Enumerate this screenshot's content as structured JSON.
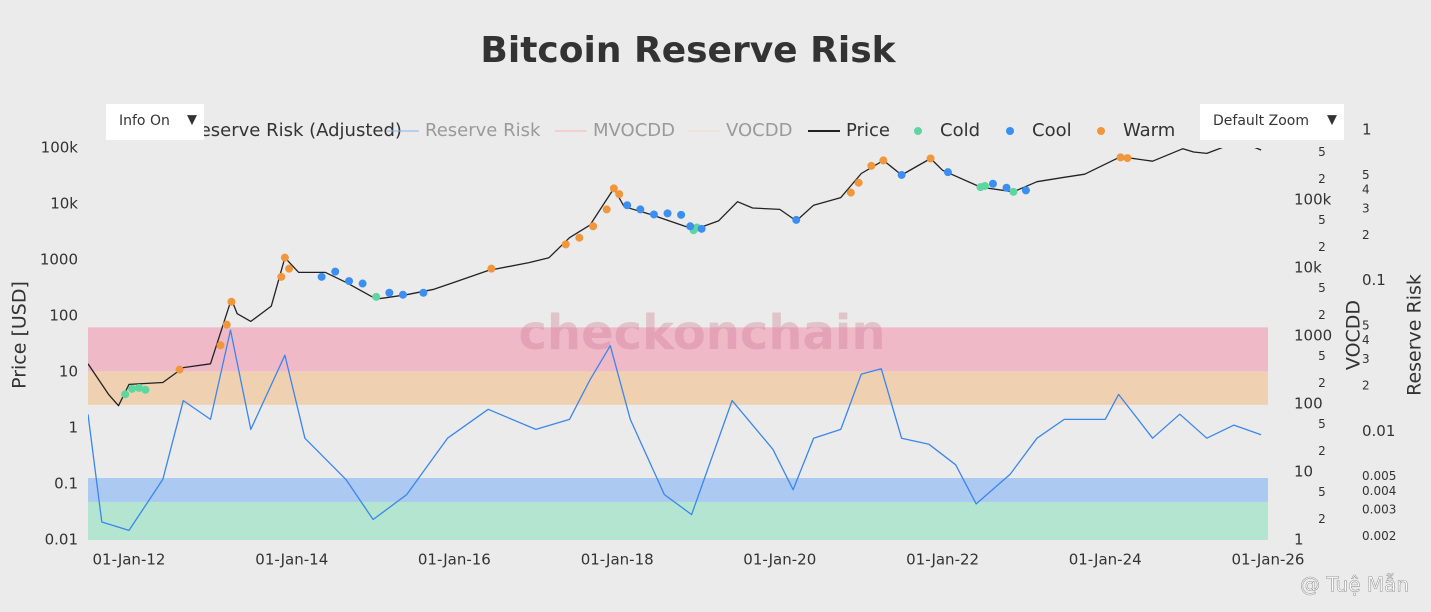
{
  "chart_data": {
    "type": "line",
    "title": "Bitcoin Reserve Risk",
    "y_label": "Price [USD]",
    "y2_label": "Reserve Risk",
    "y3_label": "VOCDD",
    "log_y": true,
    "log_y2": true,
    "log_y3": true,
    "xlim": [
      "2011-07-01",
      "2026-01-01"
    ],
    "xticks": [
      {
        "value": "2012-01-01",
        "label": "01-Jan-12"
      },
      {
        "value": "2014-01-01",
        "label": "01-Jan-14"
      },
      {
        "value": "2016-01-01",
        "label": "01-Jan-16"
      },
      {
        "value": "2018-01-01",
        "label": "01-Jan-18"
      },
      {
        "value": "2020-01-01",
        "label": "01-Jan-20"
      },
      {
        "value": "2022-01-01",
        "label": "01-Jan-22"
      },
      {
        "value": "2024-01-01",
        "label": "01-Jan-24"
      },
      {
        "value": "2026-01-01",
        "label": "01-Jan-26"
      }
    ],
    "ylim": [
      0.01,
      100000
    ],
    "yticks": [
      0.01,
      0.1,
      1,
      10,
      100,
      1000,
      {
        "value": 10000,
        "label": "10k"
      },
      {
        "value": 100000,
        "label": "100k"
      }
    ],
    "y2lim": [
      0.0019,
      0.76
    ],
    "y2ticks": [
      0.002,
      0.003,
      0.004,
      0.005,
      {
        "value": 0.01,
        "label": "0.01"
      },
      {
        "value": 0.02,
        "label": "2"
      },
      {
        "value": 0.03,
        "label": "3"
      },
      {
        "value": 0.04,
        "label": "4"
      },
      {
        "value": 0.05,
        "label": "5"
      },
      {
        "value": 0.1,
        "label": "0.1"
      },
      {
        "value": 0.2,
        "label": "2"
      },
      {
        "value": 0.3,
        "label": "3"
      },
      {
        "value": 0.4,
        "label": "4"
      },
      {
        "value": 0.5,
        "label": "5"
      },
      1
    ],
    "y3lim": [
      1,
      580000
    ],
    "y3ticks": [
      1,
      2,
      5,
      10,
      {
        "value": 20,
        "label": "2"
      },
      {
        "value": 50,
        "label": "5"
      },
      100,
      {
        "value": 200,
        "label": "2"
      },
      {
        "value": 500,
        "label": "5"
      },
      1000,
      {
        "value": 2000,
        "label": "2"
      },
      {
        "value": 5000,
        "label": "5"
      },
      {
        "value": 10000,
        "label": "10k"
      },
      {
        "value": 20000,
        "label": "2"
      },
      {
        "value": 50000,
        "label": "5"
      },
      {
        "value": 100000,
        "label": "100k"
      },
      {
        "value": 200000,
        "label": "2"
      },
      {
        "value": 500000,
        "label": "5"
      }
    ],
    "bands": [
      {
        "axis": "y2",
        "from": 0.025,
        "to": 0.049,
        "color": "#efb9c8"
      },
      {
        "axis": "y2",
        "from": 0.015,
        "to": 0.025,
        "color": "#efd1b2"
      },
      {
        "axis": "y2",
        "from": 0.0034,
        "to": 0.0049,
        "color": "#abc9f1"
      },
      {
        "axis": "y2",
        "from": 0.0019,
        "to": 0.0034,
        "color": "#b3e5d1"
      }
    ],
    "series": [
      {
        "name": "Reserve Risk (Adjusted)",
        "color": "#3a86ee",
        "axis": "y2",
        "visible": true,
        "mode": "line",
        "x": [
          "2011-07-01",
          "2011-09-01",
          "2012-01-01",
          "2012-06-01",
          "2012-09-01",
          "2013-01-01",
          "2013-04-01",
          "2013-07-01",
          "2013-12-01",
          "2014-03-01",
          "2014-09-01",
          "2015-01-01",
          "2015-06-01",
          "2015-12-01",
          "2016-06-01",
          "2017-01-01",
          "2017-06-01",
          "2017-09-01",
          "2017-12-01",
          "2018-03-01",
          "2018-08-01",
          "2018-12-01",
          "2019-06-01",
          "2019-12-01",
          "2020-03-01",
          "2020-06-01",
          "2020-10-01",
          "2021-01-01",
          "2021-04-01",
          "2021-07-01",
          "2021-11-01",
          "2022-03-01",
          "2022-06-01",
          "2022-11-01",
          "2023-03-01",
          "2023-07-01",
          "2024-01-01",
          "2024-03-01",
          "2024-08-01",
          "2024-12-01",
          "2025-04-01",
          "2025-08-01",
          "2025-12-01"
        ],
        "values": [
          0.013,
          0.0025,
          0.0022,
          0.0048,
          0.016,
          0.012,
          0.047,
          0.0103,
          0.032,
          0.009,
          0.0048,
          0.0026,
          0.0038,
          0.009,
          0.014,
          0.0103,
          0.012,
          0.022,
          0.037,
          0.012,
          0.0038,
          0.0028,
          0.016,
          0.0076,
          0.0041,
          0.009,
          0.0103,
          0.024,
          0.026,
          0.009,
          0.0082,
          0.006,
          0.0033,
          0.0052,
          0.009,
          0.012,
          0.012,
          0.0176,
          0.009,
          0.013,
          0.009,
          0.011,
          0.0095
        ]
      },
      {
        "name": "Reserve Risk",
        "color": "#8ab4ee",
        "axis": "y2",
        "visible": false,
        "mode": "line"
      },
      {
        "name": "MVOCDD",
        "color": "#f2b8b8",
        "axis": "y3",
        "visible": false,
        "mode": "line"
      },
      {
        "name": "VOCDD",
        "color": "#f0d8c8",
        "axis": "y3",
        "visible": false,
        "mode": "line"
      },
      {
        "name": "Price",
        "color": "#222222",
        "axis": "y",
        "visible": true,
        "mode": "line",
        "x": [
          "2011-07-01",
          "2011-10-01",
          "2011-11-15",
          "2012-01-01",
          "2012-06-01",
          "2012-09-01",
          "2013-01-01",
          "2013-04-05",
          "2013-05-01",
          "2013-07-01",
          "2013-10-01",
          "2013-12-01",
          "2014-02-01",
          "2014-06-01",
          "2014-09-01",
          "2015-01-15",
          "2015-06-01",
          "2015-10-01",
          "2016-01-01",
          "2016-06-01",
          "2016-12-01",
          "2017-03-01",
          "2017-06-01",
          "2017-09-01",
          "2017-12-17",
          "2018-02-01",
          "2018-06-01",
          "2018-11-01",
          "2018-12-15",
          "2019-04-01",
          "2019-06-25",
          "2019-09-01",
          "2020-01-01",
          "2020-03-15",
          "2020-06-01",
          "2020-10-01",
          "2021-01-01",
          "2021-04-10",
          "2021-07-01",
          "2021-11-08",
          "2022-01-01",
          "2022-06-20",
          "2022-11-15",
          "2023-03-01",
          "2023-07-01",
          "2023-10-01",
          "2024-03-10",
          "2024-08-01",
          "2024-12-15",
          "2025-02-01",
          "2025-04-01",
          "2025-07-15",
          "2025-10-01",
          "2025-12-01"
        ],
        "values": [
          14,
          4,
          2.5,
          6,
          6.5,
          12,
          14,
          200,
          110,
          80,
          150,
          1100,
          600,
          600,
          400,
          200,
          240,
          300,
          400,
          650,
          900,
          1100,
          2500,
          4200,
          19000,
          9000,
          6500,
          4000,
          3500,
          5000,
          11000,
          8500,
          8000,
          5000,
          9500,
          13000,
          35000,
          60000,
          33000,
          65000,
          40000,
          20000,
          16500,
          25000,
          30000,
          34000,
          70000,
          58000,
          97000,
          85000,
          80000,
          115000,
          115000,
          92000
        ]
      },
      {
        "name": "Cold",
        "color": "#5ed6a0",
        "axis": "y",
        "visible": true,
        "mode": "markers",
        "x": [
          "2011-12-15",
          "2012-01-15",
          "2012-02-15",
          "2012-03-15",
          "2015-01-15",
          "2018-12-10",
          "2018-12-25",
          "2022-06-20",
          "2022-07-10",
          "2022-11-15"
        ],
        "values": [
          4,
          5,
          5.2,
          4.8,
          220,
          3400,
          3800,
          20000,
          21000,
          16500
        ]
      },
      {
        "name": "Cool",
        "color": "#3c8ff0",
        "axis": "y",
        "visible": true,
        "mode": "markers",
        "x": [
          "2014-05-15",
          "2014-07-15",
          "2014-09-15",
          "2014-11-15",
          "2015-03-15",
          "2015-05-15",
          "2015-08-15",
          "2018-02-15",
          "2018-04-15",
          "2018-06-15",
          "2018-08-15",
          "2018-10-15",
          "2018-11-25",
          "2019-01-15",
          "2020-03-15",
          "2021-07-01",
          "2022-01-25",
          "2022-08-15",
          "2022-10-15",
          "2023-01-10"
        ],
        "values": [
          500,
          620,
          420,
          380,
          260,
          240,
          260,
          9500,
          8000,
          6500,
          6800,
          6400,
          4000,
          3600,
          5200,
          33000,
          37000,
          23000,
          19500,
          17500
        ]
      },
      {
        "name": "Warm",
        "color": "#f0963c",
        "axis": "y",
        "visible": true,
        "mode": "markers",
        "x": [
          "2012-08-15",
          "2013-02-15",
          "2013-03-15",
          "2013-04-05",
          "2013-11-15",
          "2013-12-01",
          "2013-12-20",
          "2016-06-15",
          "2017-05-15",
          "2017-07-15",
          "2017-09-15",
          "2017-11-15",
          "2017-12-17",
          "2018-01-10",
          "2020-11-15",
          "2020-12-20",
          "2021-02-15",
          "2021-04-10",
          "2021-11-08",
          "2024-03-10",
          "2024-04-10"
        ],
        "values": [
          11,
          30,
          70,
          180,
          500,
          1100,
          700,
          700,
          1900,
          2500,
          4000,
          8000,
          19000,
          15000,
          16000,
          24000,
          48000,
          60000,
          65000,
          68000,
          66000
        ]
      }
    ]
  },
  "ui": {
    "info_button": "Info On",
    "zoom_button": "Default Zoom",
    "dropdown_icon": "▼",
    "watermark": "checkonchain",
    "credit": "@ Tuệ Mẫn"
  }
}
